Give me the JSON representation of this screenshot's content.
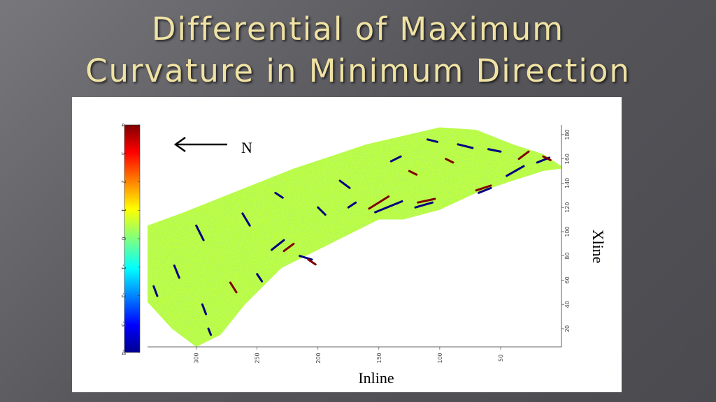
{
  "slide": {
    "title_line1": "Differential of Maximum",
    "title_line2": "Curvature in Minimum Direction",
    "accent_color": "#efe2a4"
  },
  "chart_data": {
    "type": "heatmap",
    "title": "Differential of Maximum Curvature in Minimum Direction",
    "xlabel": "Inline",
    "ylabel": "Xline",
    "x_ticks": [
      300,
      250,
      200,
      150,
      100,
      50
    ],
    "y_ticks": [
      20,
      40,
      60,
      80,
      100,
      120,
      140,
      160,
      180
    ],
    "xlim": [
      340,
      0
    ],
    "ylim": [
      5,
      188
    ],
    "x_reversed": true,
    "colorbar": {
      "ticks": [
        4,
        3,
        2,
        1,
        0,
        -1,
        -2,
        -3,
        -4
      ],
      "range": [
        -4,
        4
      ],
      "colormap": "jet"
    },
    "north_arrow": {
      "label": "N",
      "direction": "left"
    },
    "background_value": 0.5,
    "outline_top": [
      [
        340,
        105
      ],
      [
        310,
        116
      ],
      [
        280,
        128
      ],
      [
        250,
        140
      ],
      [
        220,
        152
      ],
      [
        190,
        162
      ],
      [
        160,
        172
      ],
      [
        130,
        179
      ],
      [
        100,
        186
      ],
      [
        70,
        184
      ],
      [
        40,
        172
      ],
      [
        15,
        164
      ],
      [
        0,
        154
      ]
    ],
    "outline_bottom": [
      [
        0,
        152
      ],
      [
        15,
        150
      ],
      [
        40,
        142
      ],
      [
        70,
        132
      ],
      [
        100,
        118
      ],
      [
        130,
        110
      ],
      [
        150,
        110
      ],
      [
        170,
        100
      ],
      [
        200,
        85
      ],
      [
        230,
        70
      ],
      [
        260,
        40
      ],
      [
        280,
        15
      ],
      [
        300,
        5
      ],
      [
        320,
        20
      ],
      [
        340,
        42
      ]
    ],
    "anomalies": [
      {
        "x": 153,
        "y": 116,
        "dx": -22,
        "dy": 9,
        "v": -4
      },
      {
        "x": 158,
        "y": 119,
        "dx": -16,
        "dy": 10,
        "v": 4
      },
      {
        "x": 120,
        "y": 120,
        "dx": -14,
        "dy": 4,
        "v": -4
      },
      {
        "x": 118,
        "y": 124,
        "dx": -14,
        "dy": 3,
        "v": 4
      },
      {
        "x": 45,
        "y": 146,
        "dx": -14,
        "dy": 8,
        "v": -4
      },
      {
        "x": 70,
        "y": 134,
        "dx": -12,
        "dy": 4,
        "v": 4
      },
      {
        "x": 68,
        "y": 132,
        "dx": -10,
        "dy": 4,
        "v": -4
      },
      {
        "x": 215,
        "y": 80,
        "dx": -10,
        "dy": -3,
        "v": -4
      },
      {
        "x": 208,
        "y": 77,
        "dx": -6,
        "dy": -4,
        "v": 4
      },
      {
        "x": 238,
        "y": 85,
        "dx": -10,
        "dy": 8,
        "v": -4
      },
      {
        "x": 228,
        "y": 84,
        "dx": -8,
        "dy": 6,
        "v": 4
      },
      {
        "x": 85,
        "y": 172,
        "dx": -12,
        "dy": -3,
        "v": -4
      },
      {
        "x": 60,
        "y": 168,
        "dx": -10,
        "dy": -2,
        "v": -4
      },
      {
        "x": 35,
        "y": 160,
        "dx": -8,
        "dy": 6,
        "v": 4
      },
      {
        "x": 20,
        "y": 157,
        "dx": -10,
        "dy": 4,
        "v": -4
      },
      {
        "x": 300,
        "y": 105,
        "dx": -6,
        "dy": -12,
        "v": -4
      },
      {
        "x": 318,
        "y": 72,
        "dx": -4,
        "dy": -10,
        "v": -4
      },
      {
        "x": 295,
        "y": 40,
        "dx": -3,
        "dy": -8,
        "v": -4
      },
      {
        "x": 290,
        "y": 20,
        "dx": -2,
        "dy": -5,
        "v": -4
      },
      {
        "x": 272,
        "y": 58,
        "dx": -5,
        "dy": -8,
        "v": 4
      },
      {
        "x": 262,
        "y": 115,
        "dx": -6,
        "dy": -10,
        "v": -4
      },
      {
        "x": 182,
        "y": 142,
        "dx": -8,
        "dy": -6,
        "v": -4
      },
      {
        "x": 140,
        "y": 158,
        "dx": -8,
        "dy": 4,
        "v": -4
      },
      {
        "x": 125,
        "y": 150,
        "dx": -6,
        "dy": -3,
        "v": 4
      },
      {
        "x": 110,
        "y": 176,
        "dx": -8,
        "dy": -2,
        "v": -4
      },
      {
        "x": 335,
        "y": 55,
        "dx": -3,
        "dy": -8,
        "v": -4
      },
      {
        "x": 250,
        "y": 65,
        "dx": -4,
        "dy": -6,
        "v": -4
      },
      {
        "x": 235,
        "y": 132,
        "dx": -6,
        "dy": -4,
        "v": -4
      },
      {
        "x": 200,
        "y": 120,
        "dx": -6,
        "dy": -6,
        "v": -4
      },
      {
        "x": 175,
        "y": 120,
        "dx": -6,
        "dy": 4,
        "v": -4
      },
      {
        "x": 95,
        "y": 160,
        "dx": -6,
        "dy": -3,
        "v": 4
      },
      {
        "x": 15,
        "y": 162,
        "dx": -6,
        "dy": -3,
        "v": 4
      }
    ]
  }
}
